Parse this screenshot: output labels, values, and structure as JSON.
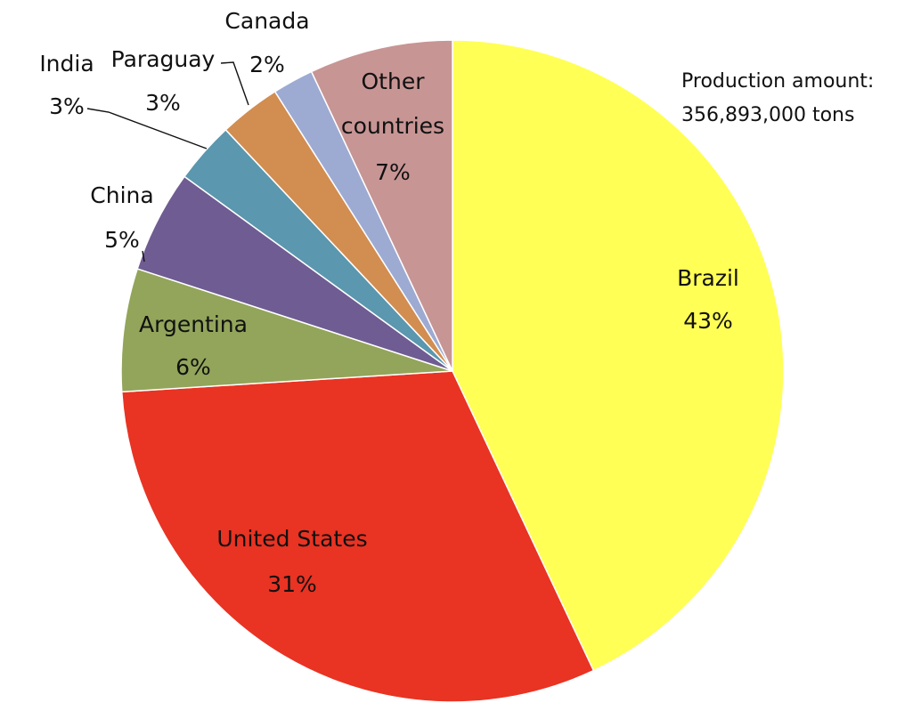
{
  "chart_data": {
    "type": "pie",
    "note_lines": [
      "Production amount:",
      "356,893,000 tons"
    ],
    "slices": [
      {
        "name": "Brazil",
        "value": 43,
        "label": "43%",
        "color": "#FFFF55"
      },
      {
        "name": "United States",
        "value": 31,
        "label": "31%",
        "color": "#E93323"
      },
      {
        "name": "Argentina",
        "value": 6,
        "label": "6%",
        "color": "#92A55B"
      },
      {
        "name": "China",
        "value": 5,
        "label": "5%",
        "color": "#6F5C92"
      },
      {
        "name": "India",
        "value": 3,
        "label": "3%",
        "color": "#5B97AE"
      },
      {
        "name": "Paraguay",
        "value": 3,
        "label": "3%",
        "color": "#D28D50"
      },
      {
        "name": "Canada",
        "value": 2,
        "label": "2%",
        "color": "#9DABD3"
      },
      {
        "name": "Other countries",
        "name_lines": [
          "Other",
          "countries"
        ],
        "value": 7,
        "label": "7%",
        "color": "#C79594"
      }
    ]
  }
}
